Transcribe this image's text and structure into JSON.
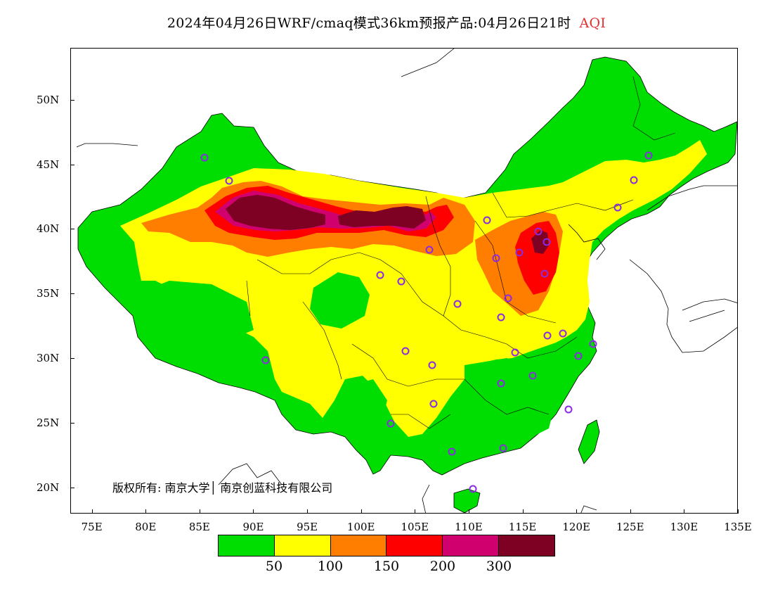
{
  "title": {
    "main": "2024年04月26日WRF/cmaq模式36km预报产品:04月26日21时",
    "variable": "AQI",
    "variable_color": "#e03030"
  },
  "map": {
    "lon_range": [
      73,
      135
    ],
    "lat_range": [
      18,
      54
    ],
    "lat_labels": [
      {
        "lat": 50,
        "label": "50N"
      },
      {
        "lat": 45,
        "label": "45N"
      },
      {
        "lat": 40,
        "label": "40N"
      },
      {
        "lat": 35,
        "label": "35N"
      },
      {
        "lat": 30,
        "label": "30N"
      },
      {
        "lat": 25,
        "label": "25N"
      },
      {
        "lat": 20,
        "label": "20N"
      }
    ],
    "lon_labels": [
      {
        "lon": 75,
        "label": "75E"
      },
      {
        "lon": 80,
        "label": "80E"
      },
      {
        "lon": 85,
        "label": "85E"
      },
      {
        "lon": 90,
        "label": "90E"
      },
      {
        "lon": 95,
        "label": "95E"
      },
      {
        "lon": 100,
        "label": "100E"
      },
      {
        "lon": 105,
        "label": "105E"
      },
      {
        "lon": 110,
        "label": "110E"
      },
      {
        "lon": 115,
        "label": "115E"
      },
      {
        "lon": 120,
        "label": "120E"
      },
      {
        "lon": 125,
        "label": "125E"
      },
      {
        "lon": 130,
        "label": "130E"
      },
      {
        "lon": 135,
        "label": "135E"
      }
    ],
    "copyright": "版权所有: 南京大学│ 南京创蓝科技有限公司",
    "station_color": "#8b2be2"
  },
  "legend": {
    "colors": [
      "#00dd00",
      "#ffff00",
      "#ff7e00",
      "#ff0000",
      "#d0006f",
      "#7e0023"
    ],
    "labels": [
      {
        "value": 50,
        "text": "50"
      },
      {
        "value": 100,
        "text": "100"
      },
      {
        "value": 150,
        "text": "150"
      },
      {
        "value": 200,
        "text": "200"
      },
      {
        "value": 300,
        "text": "300"
      }
    ]
  }
}
